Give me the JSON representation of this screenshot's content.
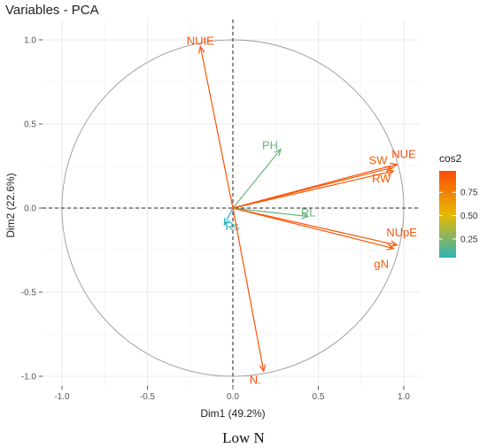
{
  "chart_data": {
    "type": "pca-variable-correlation-circle",
    "title": "Variables - PCA",
    "xlabel": "Dim1 (49.2%)",
    "ylabel": "Dim2 (22.6%)",
    "xlim": [
      -1.05,
      1.1
    ],
    "ylim": [
      -1.05,
      1.02
    ],
    "x_ticks": [
      -1.0,
      -0.5,
      0.0,
      0.5,
      1.0
    ],
    "y_ticks": [
      -1.0,
      -0.5,
      0.0,
      0.5,
      1.0
    ],
    "x_tick_labels": [
      "-1.0",
      "-0.5",
      "0.0",
      "0.5",
      "1.0"
    ],
    "y_tick_labels": [
      "-1.0",
      "-0.5",
      "0.0",
      "0.5",
      "1.0"
    ],
    "grid": true,
    "legend": {
      "title": "cos2",
      "position": "right",
      "ticks": [
        0.25,
        0.5,
        0.75
      ],
      "tick_labels": [
        "0.25",
        "0.50",
        "0.75"
      ],
      "range": [
        0.05,
        0.98
      ],
      "colors": [
        "#2fb3b8",
        "#e8b800",
        "#fc4e07"
      ]
    },
    "variables": [
      {
        "name": "NUtE",
        "x": -0.19,
        "y": 0.96,
        "cos2": 0.96
      },
      {
        "name": "PH",
        "x": 0.28,
        "y": 0.35,
        "cos2": 0.2
      },
      {
        "name": "SW",
        "x": 0.93,
        "y": 0.24,
        "cos2": 0.92
      },
      {
        "name": "NUE",
        "x": 0.96,
        "y": 0.26,
        "cos2": 0.98
      },
      {
        "name": "RW",
        "x": 0.94,
        "y": 0.22,
        "cos2": 0.93
      },
      {
        "name": "RL",
        "x": 0.44,
        "y": -0.05,
        "cos2": 0.2
      },
      {
        "name": "Rs",
        "x": -0.05,
        "y": -0.1,
        "cos2": 0.02
      },
      {
        "name": "NUpE",
        "x": 0.96,
        "y": -0.22,
        "cos2": 0.96
      },
      {
        "name": "gN",
        "x": 0.94,
        "y": -0.24,
        "cos2": 0.93
      },
      {
        "name": "N.",
        "x": 0.18,
        "y": -0.97,
        "cos2": 0.97
      }
    ]
  },
  "caption": "Low N"
}
